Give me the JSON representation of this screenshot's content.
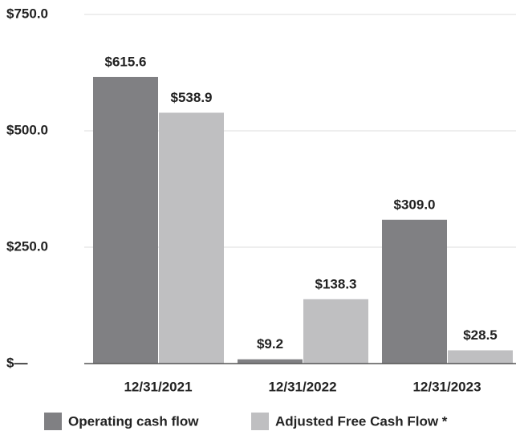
{
  "chart_data": {
    "type": "bar",
    "categories": [
      "12/31/2021",
      "12/31/2022",
      "12/31/2023"
    ],
    "series": [
      {
        "name": "Operating cash flow",
        "color": "#808083",
        "values": [
          615.6,
          9.2,
          309.0
        ],
        "value_labels": [
          "$615.6",
          "$9.2",
          "$309.0"
        ]
      },
      {
        "name": "Adjusted Free Cash Flow *",
        "color": "#bfbfc1",
        "values": [
          538.9,
          138.3,
          28.5
        ],
        "value_labels": [
          "$538.9",
          "$138.3",
          "$28.5"
        ]
      }
    ],
    "ylim": [
      0,
      750
    ],
    "yticks": [
      {
        "value": 0,
        "label": "$—"
      },
      {
        "value": 250,
        "label": "$250.0"
      },
      {
        "value": 500,
        "label": "$500.0"
      },
      {
        "value": 750,
        "label": "$750.0"
      }
    ],
    "grid": true,
    "legend": "bottom"
  }
}
